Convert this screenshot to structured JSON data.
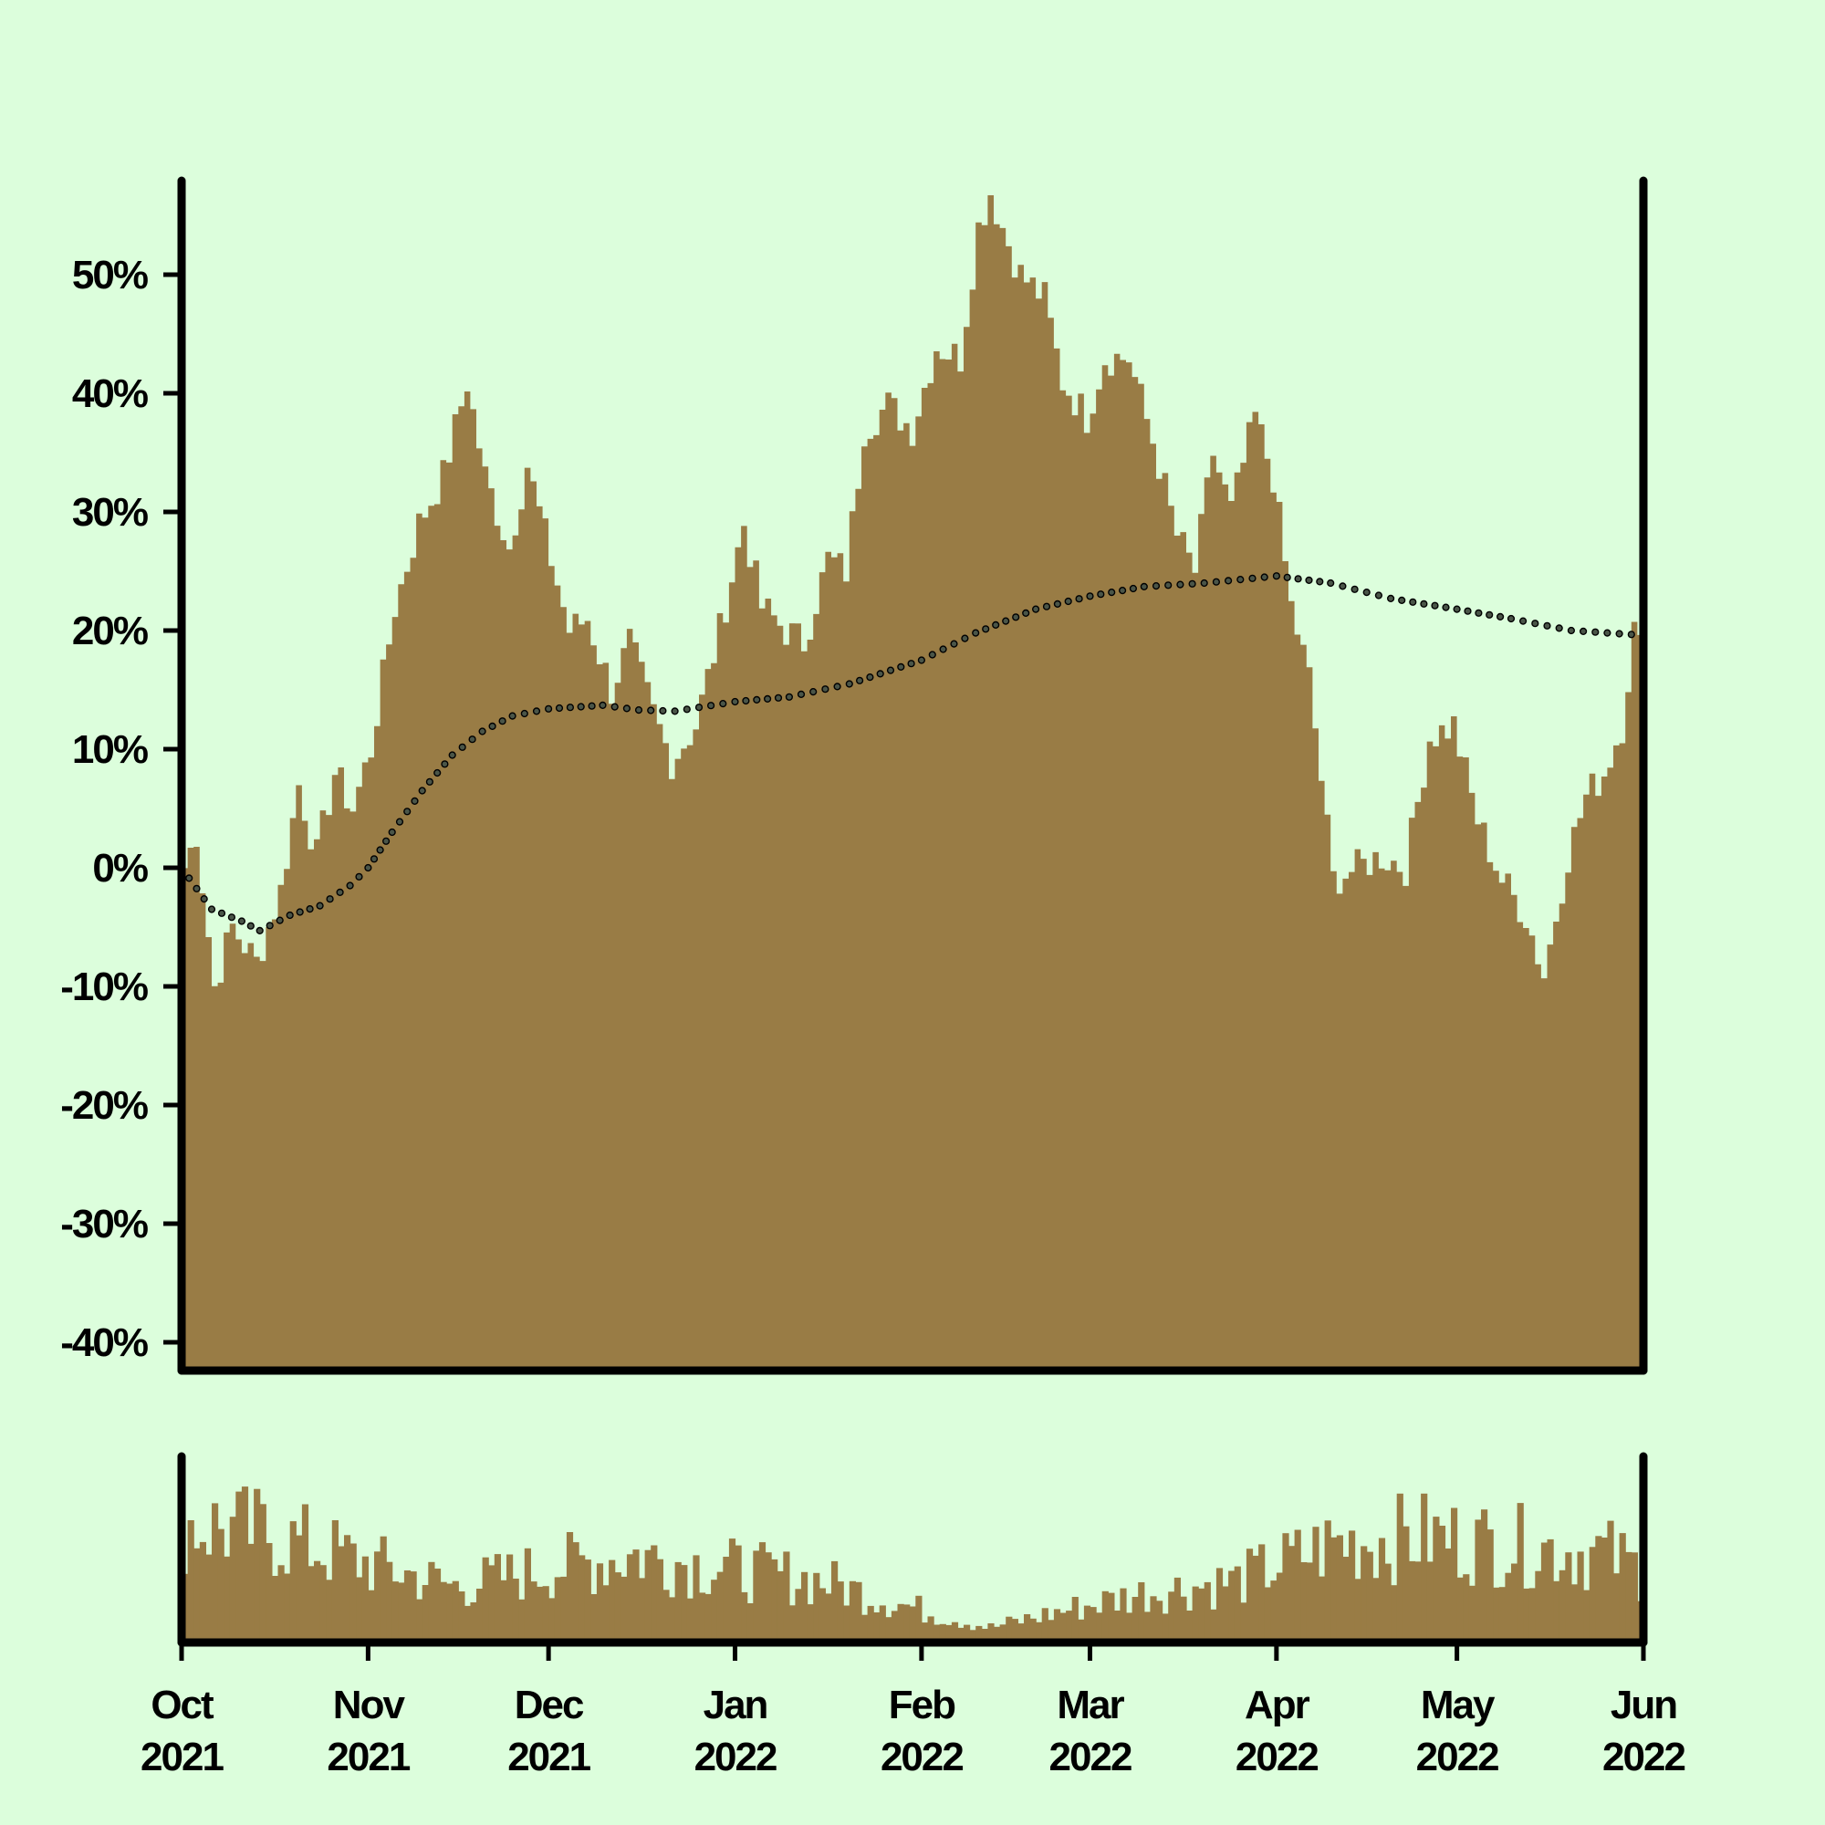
{
  "colors": {
    "background": "#dcfedc",
    "area_fill": "#997c45",
    "volume_fill": "#997c45",
    "axis": "#000000",
    "marker_fill": "#4a5548"
  },
  "chart_data": [
    {
      "type": "area",
      "x_range": [
        "2021-10-01",
        "2022-06-01"
      ],
      "y_range_percent": [
        -40,
        55
      ],
      "y_ticks": [
        "-40%",
        "-30%",
        "-20%",
        "-10%",
        "0%",
        "10%",
        "20%",
        "30%",
        "40%",
        "50%"
      ],
      "y_tick_values": [
        -40,
        -30,
        -20,
        -10,
        0,
        10,
        20,
        30,
        40,
        50
      ],
      "x_ticks": [
        {
          "date": "2021-10-01",
          "month": "Oct",
          "year": "2021"
        },
        {
          "date": "2021-11-01",
          "month": "Nov",
          "year": "2021"
        },
        {
          "date": "2021-12-01",
          "month": "Dec",
          "year": "2021"
        },
        {
          "date": "2022-01-01",
          "month": "Jan",
          "year": "2022"
        },
        {
          "date": "2022-02-01",
          "month": "Feb",
          "year": "2022"
        },
        {
          "date": "2022-03-01",
          "month": "Mar",
          "year": "2022"
        },
        {
          "date": "2022-04-01",
          "month": "Apr",
          "year": "2022"
        },
        {
          "date": "2022-05-01",
          "month": "May",
          "year": "2022"
        },
        {
          "date": "2022-06-01",
          "month": "Jun",
          "year": "2022"
        }
      ],
      "series": [
        {
          "kind": "area",
          "points": [
            [
              "2021-10-01",
              0
            ],
            [
              "2021-10-03",
              3
            ],
            [
              "2021-10-06",
              -10
            ],
            [
              "2021-10-09",
              -5
            ],
            [
              "2021-10-13",
              -8
            ],
            [
              "2021-10-17",
              -2
            ],
            [
              "2021-10-20",
              7
            ],
            [
              "2021-10-23",
              1
            ],
            [
              "2021-10-26",
              8
            ],
            [
              "2021-10-29",
              5
            ],
            [
              "2021-11-01",
              10
            ],
            [
              "2021-11-05",
              22
            ],
            [
              "2021-11-09",
              29
            ],
            [
              "2021-11-13",
              33
            ],
            [
              "2021-11-17",
              41
            ],
            [
              "2021-11-20",
              33
            ],
            [
              "2021-11-24",
              27
            ],
            [
              "2021-11-27",
              34
            ],
            [
              "2021-11-30",
              28
            ],
            [
              "2021-12-04",
              20
            ],
            [
              "2021-12-07",
              21
            ],
            [
              "2021-12-11",
              15
            ],
            [
              "2021-12-14",
              19
            ],
            [
              "2021-12-18",
              13
            ],
            [
              "2021-12-21",
              9
            ],
            [
              "2021-12-25",
              12
            ],
            [
              "2021-12-29",
              20
            ],
            [
              "2022-01-02",
              29
            ],
            [
              "2022-01-05",
              22
            ],
            [
              "2022-01-09",
              20
            ],
            [
              "2022-01-12",
              19
            ],
            [
              "2022-01-16",
              26
            ],
            [
              "2022-01-19",
              25
            ],
            [
              "2022-01-22",
              37
            ],
            [
              "2022-01-26",
              39
            ],
            [
              "2022-01-30",
              37
            ],
            [
              "2022-02-03",
              44
            ],
            [
              "2022-02-07",
              43
            ],
            [
              "2022-02-10",
              54
            ],
            [
              "2022-02-12",
              57
            ],
            [
              "2022-02-14",
              54
            ],
            [
              "2022-02-17",
              50
            ],
            [
              "2022-02-21",
              48
            ],
            [
              "2022-02-24",
              41
            ],
            [
              "2022-02-28",
              38
            ],
            [
              "2022-03-03",
              43
            ],
            [
              "2022-03-07",
              43
            ],
            [
              "2022-03-11",
              36
            ],
            [
              "2022-03-15",
              28
            ],
            [
              "2022-03-18",
              25
            ],
            [
              "2022-03-21",
              35
            ],
            [
              "2022-03-24",
              30
            ],
            [
              "2022-03-28",
              38
            ],
            [
              "2022-03-31",
              33
            ],
            [
              "2022-04-03",
              22
            ],
            [
              "2022-04-06",
              16
            ],
            [
              "2022-04-10",
              -1
            ],
            [
              "2022-04-14",
              0
            ],
            [
              "2022-04-18",
              1
            ],
            [
              "2022-04-22",
              0
            ],
            [
              "2022-04-26",
              11
            ],
            [
              "2022-04-30",
              12
            ],
            [
              "2022-05-04",
              4
            ],
            [
              "2022-05-08",
              -1
            ],
            [
              "2022-05-12",
              -4
            ],
            [
              "2022-05-15",
              -9
            ],
            [
              "2022-05-19",
              1
            ],
            [
              "2022-05-22",
              6
            ],
            [
              "2022-05-25",
              8
            ],
            [
              "2022-05-28",
              12
            ],
            [
              "2022-05-30",
              20
            ],
            [
              "2022-06-01",
              17
            ]
          ]
        },
        {
          "kind": "dotted-line",
          "points": [
            [
              "2021-10-01",
              0
            ],
            [
              "2021-10-06",
              -3.5
            ],
            [
              "2021-10-11",
              -4.5
            ],
            [
              "2021-10-14",
              -5.3
            ],
            [
              "2021-10-19",
              -4
            ],
            [
              "2021-10-24",
              -3.2
            ],
            [
              "2021-10-29",
              -1.5
            ],
            [
              "2021-11-01",
              0
            ],
            [
              "2021-11-05",
              3
            ],
            [
              "2021-11-10",
              6.5
            ],
            [
              "2021-11-15",
              9.5
            ],
            [
              "2021-11-20",
              11.5
            ],
            [
              "2021-11-25",
              12.8
            ],
            [
              "2021-12-01",
              13.4
            ],
            [
              "2021-12-10",
              13.7
            ],
            [
              "2021-12-16",
              13.3
            ],
            [
              "2021-12-22",
              13.2
            ],
            [
              "2022-01-01",
              14
            ],
            [
              "2022-01-10",
              14.4
            ],
            [
              "2022-01-20",
              15.5
            ],
            [
              "2022-02-01",
              17.5
            ],
            [
              "2022-02-10",
              19.8
            ],
            [
              "2022-02-20",
              21.8
            ],
            [
              "2022-03-01",
              22.9
            ],
            [
              "2022-03-10",
              23.7
            ],
            [
              "2022-03-20",
              24.0
            ],
            [
              "2022-03-28",
              24.4
            ],
            [
              "2022-04-01",
              24.6
            ],
            [
              "2022-04-10",
              24.0
            ],
            [
              "2022-04-20",
              22.7
            ],
            [
              "2022-05-01",
              21.8
            ],
            [
              "2022-05-10",
              21.0
            ],
            [
              "2022-05-20",
              20.0
            ],
            [
              "2022-06-01",
              19.6
            ]
          ]
        }
      ]
    },
    {
      "type": "bar",
      "x_range": [
        "2021-10-01",
        "2022-06-01"
      ],
      "relative_height_profile": [
        [
          "2021-10-01",
          0.64
        ],
        [
          "2021-10-15",
          0.58
        ],
        [
          "2021-11-01",
          0.42
        ],
        [
          "2021-11-15",
          0.3
        ],
        [
          "2021-12-01",
          0.4
        ],
        [
          "2021-12-15",
          0.47
        ],
        [
          "2022-01-01",
          0.39
        ],
        [
          "2022-01-15",
          0.33
        ],
        [
          "2022-02-01",
          0.17
        ],
        [
          "2022-02-12",
          0.08
        ],
        [
          "2022-02-24",
          0.17
        ],
        [
          "2022-03-10",
          0.27
        ],
        [
          "2022-03-25",
          0.33
        ],
        [
          "2022-04-10",
          0.53
        ],
        [
          "2022-04-25",
          0.57
        ],
        [
          "2022-05-10",
          0.52
        ],
        [
          "2022-05-25",
          0.48
        ],
        [
          "2022-06-01",
          0.38
        ]
      ]
    }
  ]
}
